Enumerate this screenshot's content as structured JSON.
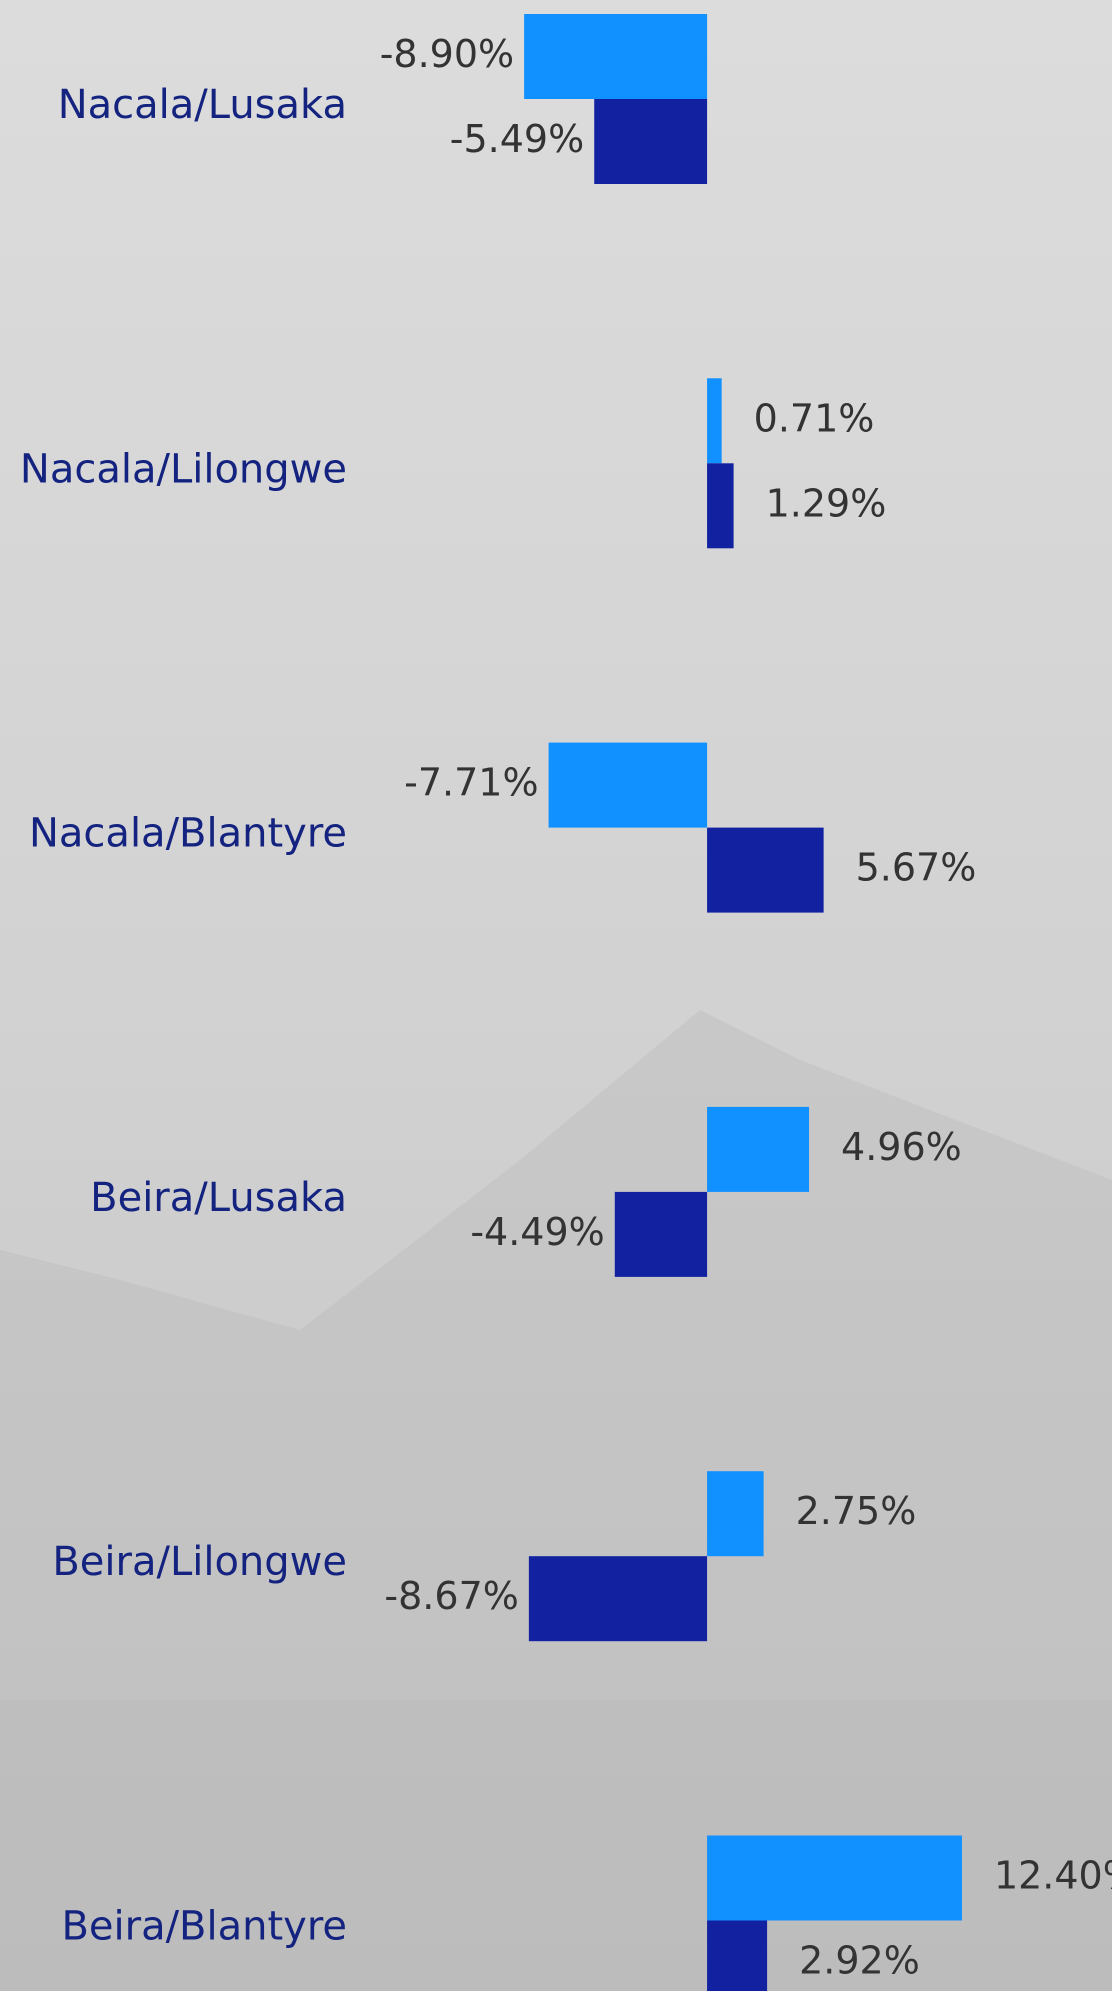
{
  "chart_data": {
    "type": "bar",
    "orientation": "horizontal",
    "categories": [
      "Nacala/Lusaka",
      "Nacala/Lilongwe",
      "Nacala/Blantyre",
      "Beira/Lusaka",
      "Beira/Lilongwe",
      "Beira/Blantyre"
    ],
    "series": [
      {
        "color": "#1190ff",
        "values": [
          -8.9,
          0.71,
          -7.71,
          4.96,
          2.75,
          12.4
        ],
        "value_labels": [
          "-8.90%",
          "0.71%",
          "-7.71%",
          "4.96%",
          "2.75%",
          "12.40%"
        ]
      },
      {
        "color": "#1121a0",
        "values": [
          -5.49,
          1.29,
          5.67,
          -4.49,
          -8.67,
          2.92
        ],
        "value_labels": [
          "-5.49%",
          "1.29%",
          "5.67%",
          "-4.49%",
          "-8.67%",
          "2.92%"
        ]
      }
    ],
    "xlim": [
      -34.4,
      19.7
    ]
  }
}
